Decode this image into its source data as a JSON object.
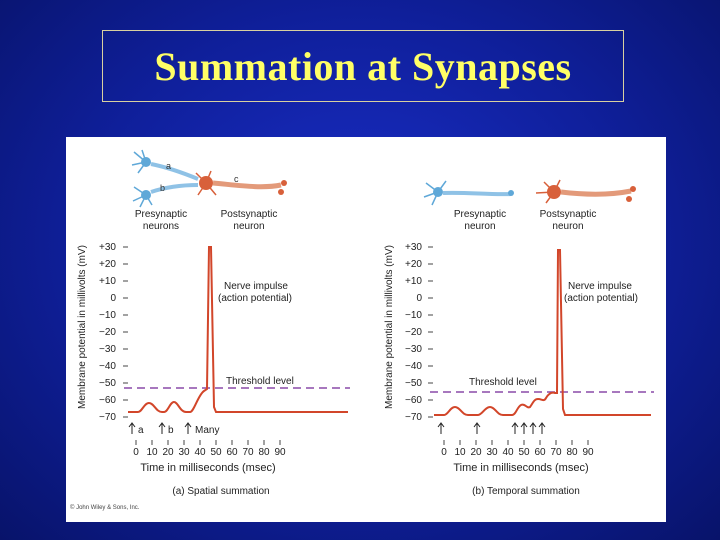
{
  "slide": {
    "title": "Summation at Synapses"
  },
  "figure": {
    "colors": {
      "presynaptic": "#5fa8d8",
      "postsynaptic": "#d8603a",
      "trace": "#d2462a",
      "threshold": "#8a4aa8"
    },
    "left_panel": {
      "neuron_labels": {
        "a": "a",
        "b": "b",
        "c": "c"
      },
      "presynaptic_label": [
        "Presynaptic",
        "neurons"
      ],
      "postsynaptic_label": [
        "Postsynaptic",
        "neuron"
      ],
      "ylabel": "Membrane potential in millivolts (mV)",
      "y_ticks": [
        "+30",
        "+20",
        "+10",
        "0",
        "−10",
        "−20",
        "−30",
        "−40",
        "−50",
        "−60",
        "−70"
      ],
      "nerve_impulse_label": [
        "Nerve impulse",
        "(action potential)"
      ],
      "threshold_label": "Threshold level",
      "stimulus_markers": [
        "a",
        "b",
        "Many"
      ],
      "x_ticks": [
        "0",
        "10",
        "20",
        "30",
        "40",
        "50",
        "60",
        "70",
        "80",
        "90"
      ],
      "xlabel": "Time in milliseconds (msec)",
      "caption": "(a) Spatial summation"
    },
    "right_panel": {
      "presynaptic_label": [
        "Presynaptic",
        "neuron"
      ],
      "postsynaptic_label": [
        "Postsynaptic",
        "neuron"
      ],
      "ylabel": "Membrane potential in millivolts (mV)",
      "y_ticks": [
        "+30",
        "+20",
        "+10",
        "0",
        "−10",
        "−20",
        "−30",
        "−40",
        "−50",
        "−60",
        "−70"
      ],
      "nerve_impulse_label": [
        "Nerve impulse",
        "(action potential)"
      ],
      "threshold_label": "Threshold level",
      "x_ticks": [
        "0",
        "10",
        "20",
        "30",
        "40",
        "50",
        "60",
        "70",
        "80",
        "90"
      ],
      "xlabel": "Time in milliseconds (msec)",
      "caption": "(b) Temporal summation"
    },
    "copyright": "© John Wiley & Sons, Inc."
  }
}
